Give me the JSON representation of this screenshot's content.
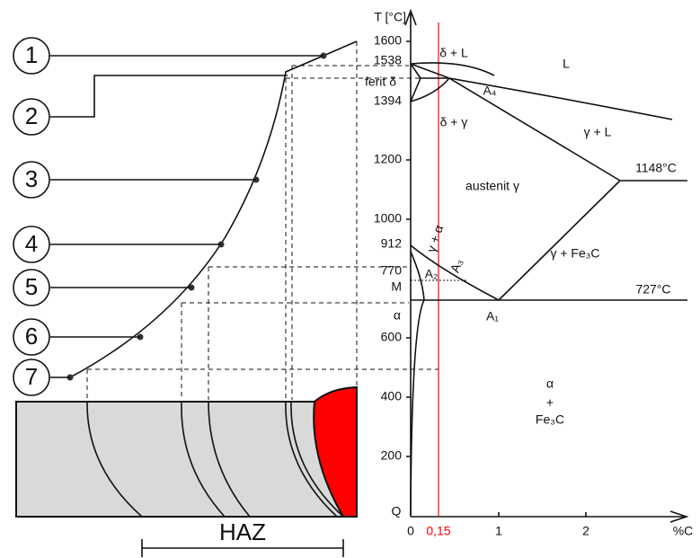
{
  "markers": [
    "1",
    "2",
    "3",
    "4",
    "5",
    "6",
    "7"
  ],
  "haz": "HAZ",
  "axes": {
    "y_title": "T [°C]",
    "x_unit": "%C",
    "y_ticks": [
      "1600",
      "1538",
      "1394",
      "1200",
      "1000",
      "912",
      "770",
      "600",
      "400",
      "200"
    ],
    "origin": "Q",
    "x_ticks": [
      "0",
      "1",
      "2"
    ],
    "carbon_line": "0,15"
  },
  "labels": [
    "δ + L",
    "L",
    "ferit δ",
    "A₄",
    "δ + γ",
    "γ + L",
    "1148°C",
    "austenit γ",
    "γ + α",
    "A₂",
    "A₃",
    "M",
    "γ + Fe₃C",
    "727°C",
    "α",
    "A₁",
    "α",
    "+",
    "Fe₃C"
  ]
}
